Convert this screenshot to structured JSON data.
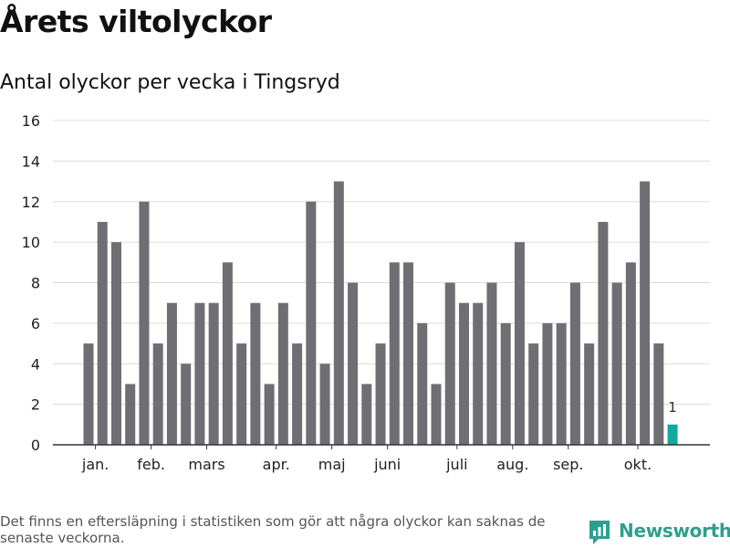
{
  "header": {
    "title": "Årets viltolyckor",
    "subtitle": "Antal olyckor per vecka i Tingsryd"
  },
  "footnote": "Det finns en eftersläpning i statistiken som gör att några olyckor kan saknas de senaste veckorna.",
  "brand": {
    "name": "Newsworthy",
    "icon": "newsworthy-logo-icon",
    "color": "#2f9e8f"
  },
  "colors": {
    "bar": "#6f6e73",
    "highlight": "#13a89e",
    "grid": "#dcdcdc",
    "axis": "#333333"
  },
  "chart_data": {
    "type": "bar",
    "title": "Antal olyckor per vecka i Tingsryd",
    "xlabel": "",
    "ylabel": "",
    "ylim": [
      0,
      16
    ],
    "yticks": [
      0,
      2,
      4,
      6,
      8,
      10,
      12,
      14,
      16
    ],
    "grid": true,
    "weeks": [
      1,
      2,
      3,
      4,
      5,
      6,
      7,
      8,
      9,
      10,
      11,
      12,
      13,
      14,
      15,
      16,
      17,
      18,
      19,
      20,
      21,
      22,
      23,
      24,
      25,
      26,
      27,
      28,
      29,
      30,
      31,
      32,
      33,
      34,
      35,
      36,
      37,
      38,
      39,
      40,
      41,
      42,
      43
    ],
    "values": [
      5,
      11,
      10,
      3,
      12,
      5,
      7,
      4,
      7,
      7,
      9,
      5,
      7,
      3,
      7,
      5,
      12,
      4,
      13,
      8,
      3,
      5,
      9,
      9,
      6,
      3,
      8,
      7,
      7,
      8,
      6,
      10,
      5,
      6,
      6,
      8,
      5,
      11,
      8,
      9,
      13,
      5,
      1
    ],
    "highlight_index": 42,
    "highlight_label": "1",
    "month_labels": [
      {
        "label": "jan.",
        "week": 1.5
      },
      {
        "label": "feb.",
        "week": 5.5
      },
      {
        "label": "mars",
        "week": 9.5
      },
      {
        "label": "apr.",
        "week": 14.5
      },
      {
        "label": "maj",
        "week": 18.5
      },
      {
        "label": "juni",
        "week": 22.5
      },
      {
        "label": "juli",
        "week": 27.5
      },
      {
        "label": "aug.",
        "week": 31.5
      },
      {
        "label": "sep.",
        "week": 35.5
      },
      {
        "label": "okt.",
        "week": 40.5
      }
    ]
  }
}
